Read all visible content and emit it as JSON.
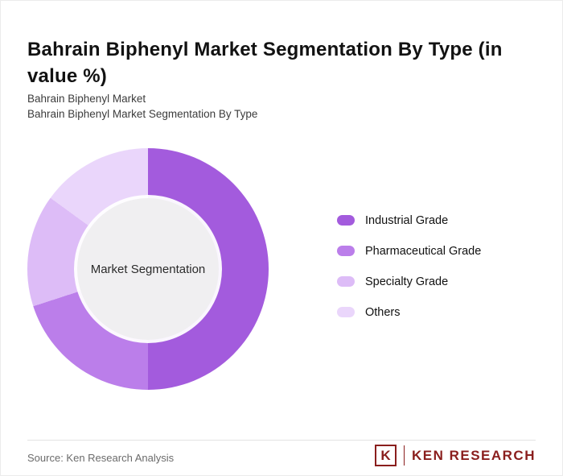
{
  "header": {
    "title": "Bahrain Biphenyl Market Segmentation By Type (in value %)",
    "subtitle_line1": "Bahrain Biphenyl Market",
    "subtitle_line2": "Bahrain Biphenyl Market Segmentation By Type"
  },
  "chart_data": {
    "type": "pie",
    "subtype": "donut",
    "center_label": "Market Segmentation",
    "categories": [
      "Industrial Grade",
      "Pharmaceutical Grade",
      "Specialty Grade",
      "Others"
    ],
    "values": [
      50,
      20,
      15,
      15
    ],
    "colors": [
      "#a35bdd",
      "#bb7eea",
      "#ddbcf7",
      "#ead6fb"
    ],
    "hole_color": "#f0eff1",
    "start_angle_deg": 0,
    "direction": "clockwise",
    "legend_position": "right"
  },
  "footer": {
    "source": "Source: Ken Research Analysis",
    "brand": {
      "logo_letter": "K",
      "name": "KEN RESEARCH",
      "color": "#8a1e1d"
    }
  }
}
